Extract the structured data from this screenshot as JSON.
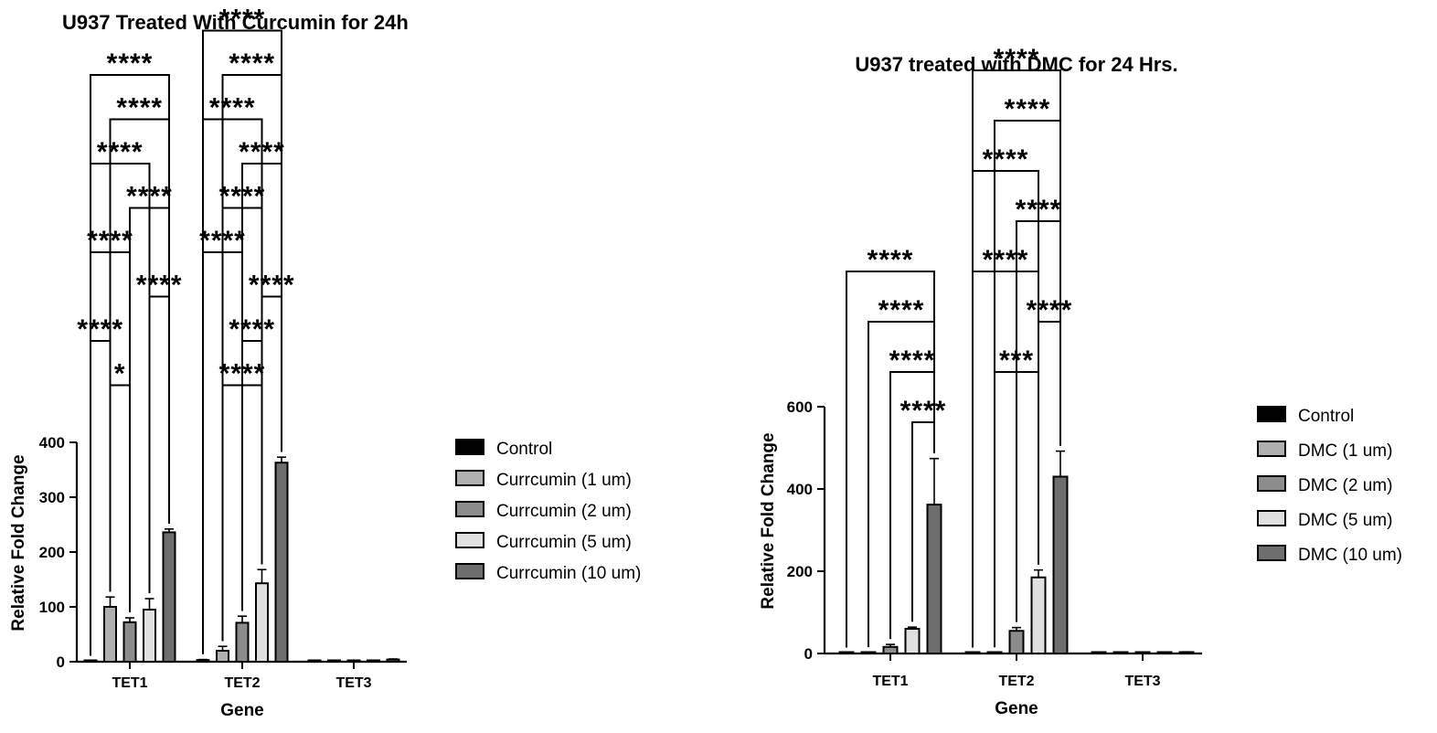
{
  "chart_data": [
    {
      "type": "bar",
      "title": "U937 Treated With Curcumin for 24h",
      "xlabel": "Gene",
      "ylabel": "Relative Fold Change",
      "ylim": [
        0,
        400
      ],
      "yticks": [
        "0",
        "100",
        "200",
        "300",
        "400"
      ],
      "categories": [
        "TET1",
        "TET2",
        "TET3"
      ],
      "series": [
        {
          "name": "Control",
          "color": "#000000",
          "values": [
            1,
            3,
            1
          ],
          "errors": [
            0,
            1,
            0
          ]
        },
        {
          "name": "Currcumin (1 um)",
          "color": "#b0b0b0",
          "values": [
            100,
            20,
            1
          ],
          "errors": [
            18,
            8,
            0
          ]
        },
        {
          "name": "Currcumin (2 um)",
          "color": "#8c8c8c",
          "values": [
            72,
            71,
            2
          ],
          "errors": [
            8,
            12,
            0
          ]
        },
        {
          "name": "Currcumin (5 um)",
          "color": "#e0e0e0",
          "values": [
            95,
            143,
            2
          ],
          "errors": [
            20,
            25,
            0
          ]
        },
        {
          "name": "Currcumin (10 um)",
          "color": "#6e6e6e",
          "values": [
            236,
            363,
            4
          ],
          "errors": [
            6,
            10,
            1
          ]
        }
      ],
      "legend_position": "right",
      "grid": false,
      "significance": [
        {
          "group": 0,
          "from": 0,
          "to": 4,
          "label": "****",
          "level": 9
        },
        {
          "group": 0,
          "from": 1,
          "to": 4,
          "label": "****",
          "level": 8
        },
        {
          "group": 0,
          "from": 0,
          "to": 3,
          "label": "****",
          "level": 7
        },
        {
          "group": 0,
          "from": 2,
          "to": 4,
          "label": "****",
          "level": 6
        },
        {
          "group": 0,
          "from": 0,
          "to": 2,
          "label": "****",
          "level": 5
        },
        {
          "group": 0,
          "from": 3,
          "to": 4,
          "label": "****",
          "level": 4
        },
        {
          "group": 0,
          "from": 0,
          "to": 1,
          "label": "****",
          "level": 3
        },
        {
          "group": 0,
          "from": 1,
          "to": 2,
          "label": "*",
          "level": 2
        },
        {
          "group": 1,
          "from": 0,
          "to": 4,
          "label": "****",
          "level": 10
        },
        {
          "group": 1,
          "from": 1,
          "to": 4,
          "label": "****",
          "level": 9
        },
        {
          "group": 1,
          "from": 0,
          "to": 3,
          "label": "****",
          "level": 8
        },
        {
          "group": 1,
          "from": 2,
          "to": 4,
          "label": "****",
          "level": 7
        },
        {
          "group": 1,
          "from": 1,
          "to": 3,
          "label": "****",
          "level": 6
        },
        {
          "group": 1,
          "from": 0,
          "to": 2,
          "label": "****",
          "level": 5
        },
        {
          "group": 1,
          "from": 3,
          "to": 4,
          "label": "****",
          "level": 4
        },
        {
          "group": 1,
          "from": 2,
          "to": 3,
          "label": "****",
          "level": 3
        },
        {
          "group": 1,
          "from": 1,
          "to": 3,
          "label": "****",
          "level": 2
        }
      ]
    },
    {
      "type": "bar",
      "title": "U937 treated with DMC for 24 Hrs.",
      "xlabel": "Gene",
      "ylabel": "Relative Fold Change",
      "ylim": [
        0,
        600
      ],
      "yticks": [
        "0",
        "200",
        "400",
        "600"
      ],
      "categories": [
        "TET1",
        "TET2",
        "TET3"
      ],
      "series": [
        {
          "name": "Control",
          "color": "#000000",
          "values": [
            1,
            1,
            1
          ],
          "errors": [
            0,
            0,
            0
          ]
        },
        {
          "name": "DMC (1 um)",
          "color": "#b0b0b0",
          "values": [
            2,
            2,
            1
          ],
          "errors": [
            0,
            0,
            0
          ]
        },
        {
          "name": "DMC (2 um)",
          "color": "#8c8c8c",
          "values": [
            16,
            55,
            1
          ],
          "errors": [
            6,
            8,
            0
          ]
        },
        {
          "name": "DMC (5 um)",
          "color": "#e0e0e0",
          "values": [
            60,
            185,
            2
          ],
          "errors": [
            4,
            18,
            0
          ]
        },
        {
          "name": "DMC (10 um)",
          "color": "#6e6e6e",
          "values": [
            362,
            430,
            3
          ],
          "errors": [
            112,
            62,
            1
          ]
        }
      ],
      "legend_position": "right",
      "grid": false,
      "significance": [
        {
          "group": 0,
          "from": 0,
          "to": 4,
          "label": "****",
          "level": 4
        },
        {
          "group": 0,
          "from": 1,
          "to": 4,
          "label": "****",
          "level": 3
        },
        {
          "group": 0,
          "from": 2,
          "to": 4,
          "label": "****",
          "level": 2
        },
        {
          "group": 0,
          "from": 3,
          "to": 4,
          "label": "****",
          "level": 1
        },
        {
          "group": 1,
          "from": 0,
          "to": 4,
          "label": "****",
          "level": 8
        },
        {
          "group": 1,
          "from": 1,
          "to": 4,
          "label": "****",
          "level": 7
        },
        {
          "group": 1,
          "from": 0,
          "to": 3,
          "label": "****",
          "level": 6
        },
        {
          "group": 1,
          "from": 2,
          "to": 4,
          "label": "****",
          "level": 5
        },
        {
          "group": 1,
          "from": 0,
          "to": 3,
          "label": "****",
          "level": 4
        },
        {
          "group": 1,
          "from": 3,
          "to": 4,
          "label": "****",
          "level": 3
        },
        {
          "group": 1,
          "from": 1,
          "to": 3,
          "label": "***",
          "level": 2
        }
      ]
    }
  ]
}
